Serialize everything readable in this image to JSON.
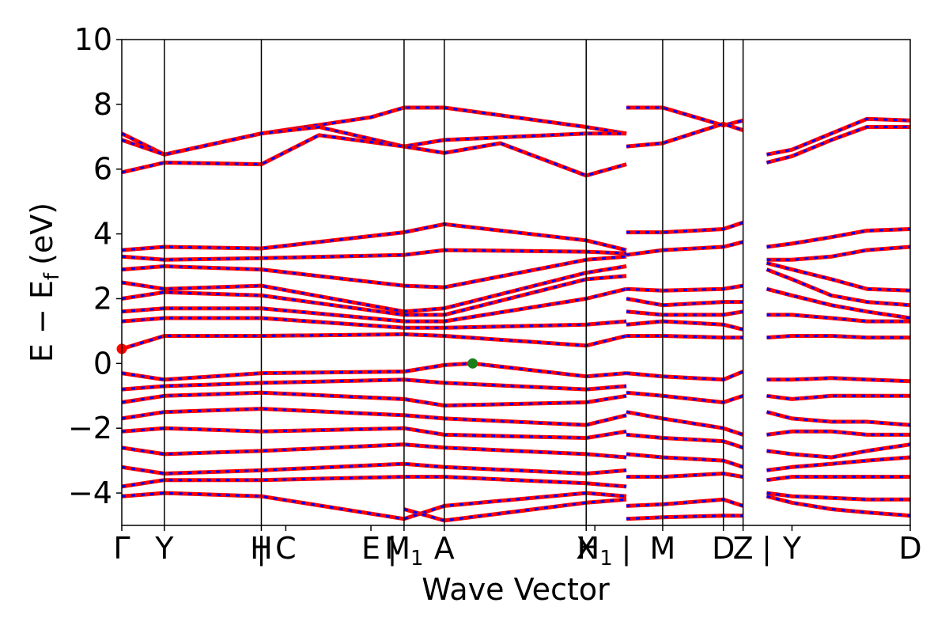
{
  "chart_data": {
    "type": "line",
    "title": "",
    "xlabel": "Wave Vector",
    "ylabel": "E − E",
    "ylabel_sub": "f",
    "ylabel_unit": "(eV)",
    "ylim": [
      -5,
      10
    ],
    "yticks": [
      10,
      8,
      6,
      4,
      2,
      0,
      -2,
      -4
    ],
    "ytick_labels": [
      "10",
      "8",
      "6",
      "4",
      "2",
      "0",
      "−2",
      "−4"
    ],
    "xlim": [
      0,
      1
    ],
    "kpoints": [
      {
        "label": "Γ",
        "x": 0.0,
        "line": false
      },
      {
        "label": "Y",
        "x": 0.054,
        "line": true
      },
      {
        "label": "H",
        "x": 0.177,
        "line": true
      },
      {
        "label": "C",
        "x": 0.208,
        "line": false
      },
      {
        "label": "E",
        "x": 0.316,
        "line": false
      },
      {
        "label": "M",
        "x": 0.358,
        "line": true,
        "sub": "1"
      },
      {
        "label": "A",
        "x": 0.409,
        "line": true
      },
      {
        "label": "X",
        "x": 0.589,
        "line": true
      },
      {
        "label": "H",
        "x": 0.6,
        "line": false,
        "sub": "1"
      },
      {
        "label": "M",
        "x": 0.686,
        "line": true
      },
      {
        "label": "D",
        "x": 0.763,
        "line": true
      },
      {
        "label": "Z",
        "x": 0.788,
        "line": true
      },
      {
        "label": "Y",
        "x": 0.85,
        "line": false
      },
      {
        "label": "D",
        "x": 1.0,
        "line": false
      }
    ],
    "extra_tick_marks": [
      {
        "label": "|",
        "x": 0.177
      },
      {
        "label": "|",
        "x": 0.343
      },
      {
        "label": "|",
        "x": 0.64
      },
      {
        "label": "|",
        "x": 0.818
      }
    ],
    "segments": [
      {
        "x0": 0.0,
        "x1": 0.64
      },
      {
        "x0": 0.64,
        "x1": 0.818
      },
      {
        "x0": 0.818,
        "x1": 1.0
      }
    ],
    "series": [
      {
        "style": "spin-up/spin-down overlay (red solid + blue dashed)",
        "color_up": "#ff0000",
        "color_down": "#0000ff",
        "bands": [
          {
            "x": [
              0.0,
              0.054,
              0.177,
              0.316,
              0.358,
              0.409,
              0.589,
              0.64
            ],
            "y": [
              7.1,
              6.45,
              7.1,
              7.6,
              7.9,
              7.9,
              7.3,
              7.1
            ]
          },
          {
            "x": [
              0.0,
              0.054,
              0.177,
              0.25,
              0.358,
              0.409,
              0.589,
              0.64
            ],
            "y": [
              6.9,
              6.45,
              7.1,
              7.3,
              6.7,
              6.9,
              7.1,
              7.1
            ]
          },
          {
            "x": [
              0.0,
              0.054,
              0.177,
              0.25,
              0.358,
              0.409,
              0.48,
              0.589,
              0.64
            ],
            "y": [
              5.9,
              6.2,
              6.15,
              7.05,
              6.7,
              6.5,
              6.8,
              5.8,
              6.15
            ]
          },
          {
            "x": [
              0.0,
              0.054,
              0.177,
              0.358,
              0.409,
              0.589,
              0.64
            ],
            "y": [
              3.5,
              3.6,
              3.55,
              4.05,
              4.3,
              3.8,
              3.5
            ]
          },
          {
            "x": [
              0.0,
              0.054,
              0.177,
              0.358,
              0.409,
              0.589,
              0.64
            ],
            "y": [
              3.3,
              3.2,
              3.25,
              3.35,
              3.5,
              3.45,
              3.4
            ]
          },
          {
            "x": [
              0.0,
              0.054,
              0.177,
              0.358,
              0.409,
              0.589,
              0.64
            ],
            "y": [
              2.9,
              3.0,
              2.9,
              2.4,
              2.35,
              3.2,
              3.3
            ]
          },
          {
            "x": [
              0.0,
              0.054,
              0.177,
              0.358,
              0.409,
              0.589,
              0.64
            ],
            "y": [
              2.5,
              2.3,
              2.4,
              1.6,
              1.7,
              2.8,
              3.0
            ]
          },
          {
            "x": [
              0.0,
              0.054,
              0.177,
              0.358,
              0.409,
              0.589,
              0.64
            ],
            "y": [
              2.0,
              2.2,
              2.1,
              1.5,
              1.5,
              2.6,
              2.7
            ]
          },
          {
            "x": [
              0.0,
              0.054,
              0.177,
              0.358,
              0.409,
              0.589,
              0.64
            ],
            "y": [
              1.6,
              1.7,
              1.7,
              1.3,
              1.3,
              2.0,
              2.3
            ]
          },
          {
            "x": [
              0.0,
              0.054,
              0.177,
              0.358,
              0.409,
              0.589,
              0.64
            ],
            "y": [
              1.3,
              1.4,
              1.4,
              1.1,
              1.1,
              1.2,
              1.3
            ]
          },
          {
            "x": [
              0.0,
              0.054,
              0.177,
              0.358,
              0.409,
              0.589,
              0.64
            ],
            "y": [
              0.45,
              0.85,
              0.85,
              0.9,
              0.85,
              0.55,
              0.85
            ]
          },
          {
            "x": [
              0.0,
              0.054,
              0.177,
              0.358,
              0.409,
              0.445,
              0.589,
              0.64
            ],
            "y": [
              -0.3,
              -0.5,
              -0.3,
              -0.25,
              -0.05,
              0.0,
              -0.4,
              -0.3
            ]
          },
          {
            "x": [
              0.0,
              0.054,
              0.177,
              0.358,
              0.409,
              0.589,
              0.64
            ],
            "y": [
              -0.8,
              -0.7,
              -0.6,
              -0.5,
              -0.6,
              -0.8,
              -0.7
            ]
          },
          {
            "x": [
              0.0,
              0.054,
              0.177,
              0.358,
              0.409,
              0.589,
              0.64
            ],
            "y": [
              -1.2,
              -1.0,
              -0.9,
              -1.1,
              -1.3,
              -1.2,
              -1.0
            ]
          },
          {
            "x": [
              0.0,
              0.054,
              0.177,
              0.358,
              0.409,
              0.589,
              0.64
            ],
            "y": [
              -1.7,
              -1.5,
              -1.4,
              -1.6,
              -1.7,
              -1.9,
              -1.6
            ]
          },
          {
            "x": [
              0.0,
              0.054,
              0.177,
              0.358,
              0.409,
              0.589,
              0.64
            ],
            "y": [
              -2.1,
              -2.0,
              -2.1,
              -2.0,
              -2.2,
              -2.3,
              -2.1
            ]
          },
          {
            "x": [
              0.0,
              0.054,
              0.177,
              0.358,
              0.409,
              0.589,
              0.64
            ],
            "y": [
              -2.6,
              -2.8,
              -2.7,
              -2.5,
              -2.6,
              -2.8,
              -2.9
            ]
          },
          {
            "x": [
              0.0,
              0.054,
              0.177,
              0.358,
              0.409,
              0.589,
              0.64
            ],
            "y": [
              -3.2,
              -3.4,
              -3.3,
              -3.1,
              -3.2,
              -3.4,
              -3.3
            ]
          },
          {
            "x": [
              0.0,
              0.054,
              0.177,
              0.358,
              0.409,
              0.589,
              0.64
            ],
            "y": [
              -3.8,
              -3.6,
              -3.6,
              -3.5,
              -3.5,
              -3.7,
              -3.8
            ]
          },
          {
            "x": [
              0.0,
              0.054,
              0.177,
              0.358,
              0.409,
              0.589,
              0.64
            ],
            "y": [
              -4.1,
              -4.0,
              -4.1,
              -4.8,
              -4.4,
              -4.0,
              -4.1
            ]
          },
          {
            "x": [
              0.358,
              0.409,
              0.589,
              0.64
            ],
            "y": [
              -4.5,
              -4.85,
              -4.3,
              -4.2
            ]
          },
          {
            "x": [
              0.64,
              0.686,
              0.763,
              0.788
            ],
            "y": [
              7.9,
              7.9,
              7.35,
              7.5
            ]
          },
          {
            "x": [
              0.64,
              0.686,
              0.763,
              0.788
            ],
            "y": [
              6.7,
              6.8,
              7.4,
              7.2
            ]
          },
          {
            "x": [
              0.64,
              0.686,
              0.763,
              0.788
            ],
            "y": [
              4.05,
              4.05,
              4.15,
              4.35
            ]
          },
          {
            "x": [
              0.64,
              0.686,
              0.763,
              0.788
            ],
            "y": [
              3.35,
              3.5,
              3.6,
              3.75
            ]
          },
          {
            "x": [
              0.64,
              0.686,
              0.763,
              0.788
            ],
            "y": [
              2.3,
              2.25,
              2.3,
              2.4
            ]
          },
          {
            "x": [
              0.64,
              0.686,
              0.763,
              0.788
            ],
            "y": [
              2.0,
              1.8,
              1.9,
              1.9
            ]
          },
          {
            "x": [
              0.64,
              0.686,
              0.763,
              0.788
            ],
            "y": [
              1.6,
              1.5,
              1.5,
              1.6
            ]
          },
          {
            "x": [
              0.64,
              0.686,
              0.763,
              0.788
            ],
            "y": [
              1.2,
              1.3,
              1.2,
              1.05
            ]
          },
          {
            "x": [
              0.64,
              0.686,
              0.763,
              0.788
            ],
            "y": [
              0.85,
              0.85,
              0.8,
              0.8
            ]
          },
          {
            "x": [
              0.64,
              0.686,
              0.763,
              0.788
            ],
            "y": [
              -0.3,
              -0.4,
              -0.5,
              -0.25
            ]
          },
          {
            "x": [
              0.64,
              0.686,
              0.763,
              0.788
            ],
            "y": [
              -0.9,
              -1.0,
              -1.2,
              -1.0
            ]
          },
          {
            "x": [
              0.64,
              0.686,
              0.763,
              0.788
            ],
            "y": [
              -1.5,
              -1.7,
              -2.0,
              -2.2
            ]
          },
          {
            "x": [
              0.64,
              0.686,
              0.763,
              0.788
            ],
            "y": [
              -2.2,
              -2.3,
              -2.4,
              -2.6
            ]
          },
          {
            "x": [
              0.64,
              0.686,
              0.763,
              0.788
            ],
            "y": [
              -2.8,
              -2.9,
              -3.0,
              -3.2
            ]
          },
          {
            "x": [
              0.64,
              0.686,
              0.763,
              0.788
            ],
            "y": [
              -3.5,
              -3.5,
              -3.4,
              -3.5
            ]
          },
          {
            "x": [
              0.64,
              0.686,
              0.763,
              0.788
            ],
            "y": [
              -4.4,
              -4.35,
              -4.2,
              -4.4
            ]
          },
          {
            "x": [
              0.64,
              0.686,
              0.763,
              0.788
            ],
            "y": [
              -4.8,
              -4.75,
              -4.7,
              -4.7
            ]
          },
          {
            "x": [
              0.818,
              0.85,
              0.9,
              0.945,
              1.0
            ],
            "y": [
              6.45,
              6.6,
              7.1,
              7.55,
              7.5
            ]
          },
          {
            "x": [
              0.818,
              0.85,
              0.9,
              0.945,
              1.0
            ],
            "y": [
              6.2,
              6.4,
              6.9,
              7.3,
              7.3
            ]
          },
          {
            "x": [
              0.818,
              0.85,
              0.9,
              0.945,
              1.0
            ],
            "y": [
              3.6,
              3.7,
              3.9,
              4.1,
              4.15
            ]
          },
          {
            "x": [
              0.818,
              0.85,
              0.9,
              0.945,
              1.0
            ],
            "y": [
              3.2,
              3.2,
              3.3,
              3.5,
              3.6
            ]
          },
          {
            "x": [
              0.818,
              0.85,
              0.9,
              0.945,
              1.0
            ],
            "y": [
              3.1,
              2.9,
              2.6,
              2.3,
              2.25
            ]
          },
          {
            "x": [
              0.818,
              0.85,
              0.9,
              0.945,
              1.0
            ],
            "y": [
              2.9,
              2.6,
              2.1,
              1.9,
              1.8
            ]
          },
          {
            "x": [
              0.818,
              0.85,
              0.9,
              0.945,
              1.0
            ],
            "y": [
              2.3,
              2.1,
              1.8,
              1.6,
              1.4
            ]
          },
          {
            "x": [
              0.818,
              0.85,
              0.9,
              0.945,
              1.0
            ],
            "y": [
              1.5,
              1.5,
              1.4,
              1.3,
              1.3
            ]
          },
          {
            "x": [
              0.818,
              0.85,
              0.9,
              0.945,
              1.0
            ],
            "y": [
              0.8,
              0.85,
              0.85,
              0.8,
              0.8
            ]
          },
          {
            "x": [
              0.818,
              0.85,
              0.9,
              0.945,
              1.0
            ],
            "y": [
              -0.5,
              -0.5,
              -0.45,
              -0.5,
              -0.55
            ]
          },
          {
            "x": [
              0.818,
              0.85,
              0.9,
              0.945,
              1.0
            ],
            "y": [
              -1.0,
              -1.1,
              -1.0,
              -1.0,
              -1.0
            ]
          },
          {
            "x": [
              0.818,
              0.85,
              0.9,
              0.945,
              1.0
            ],
            "y": [
              -1.5,
              -1.7,
              -1.8,
              -1.8,
              -1.9
            ]
          },
          {
            "x": [
              0.818,
              0.85,
              0.9,
              0.945,
              1.0
            ],
            "y": [
              -2.2,
              -2.1,
              -2.1,
              -2.2,
              -2.2
            ]
          },
          {
            "x": [
              0.818,
              0.85,
              0.9,
              0.945,
              1.0
            ],
            "y": [
              -2.7,
              -2.8,
              -2.9,
              -2.7,
              -2.5
            ]
          },
          {
            "x": [
              0.818,
              0.85,
              0.9,
              0.945,
              1.0
            ],
            "y": [
              -3.3,
              -3.2,
              -3.1,
              -3.0,
              -2.9
            ]
          },
          {
            "x": [
              0.818,
              0.85,
              0.9,
              0.945,
              1.0
            ],
            "y": [
              -3.6,
              -3.5,
              -3.5,
              -3.5,
              -3.5
            ]
          },
          {
            "x": [
              0.818,
              0.85,
              0.9,
              0.945,
              1.0
            ],
            "y": [
              -4.0,
              -4.1,
              -4.15,
              -4.2,
              -4.2
            ]
          },
          {
            "x": [
              0.818,
              0.85,
              0.9,
              0.945,
              1.0
            ],
            "y": [
              -4.1,
              -4.3,
              -4.5,
              -4.6,
              -4.7
            ]
          }
        ]
      }
    ],
    "markers": [
      {
        "label": "",
        "x": 0.0,
        "y": 0.45,
        "color": "#ff0000"
      },
      {
        "label": "",
        "x": 0.445,
        "y": 0.0,
        "color": "#1a7f1a"
      }
    ],
    "grid": false,
    "legend": "none"
  }
}
